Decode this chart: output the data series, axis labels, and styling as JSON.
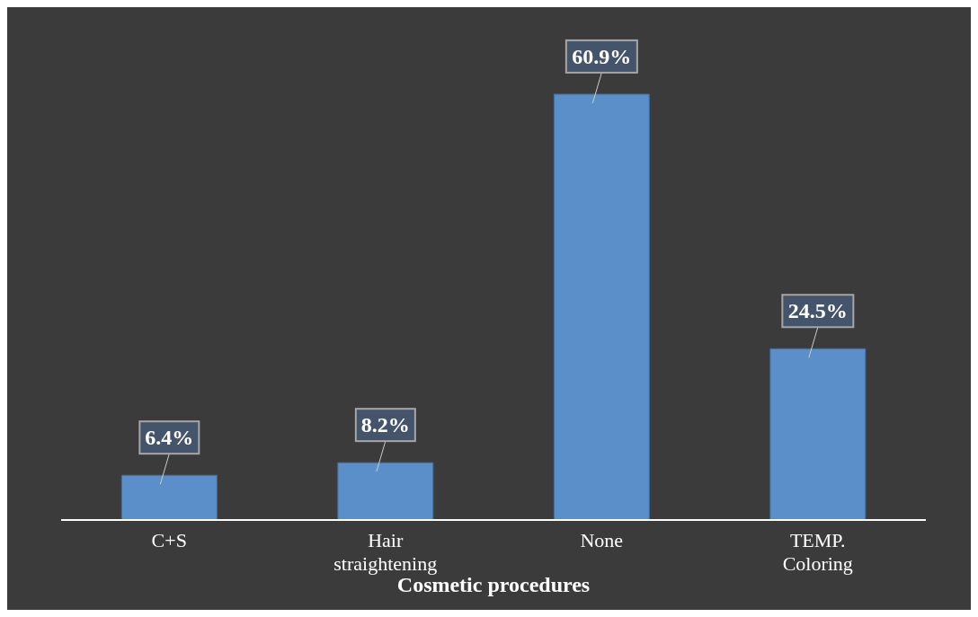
{
  "chart_data": {
    "type": "bar",
    "xlabel": "Cosmetic procedures",
    "categories": [
      "C+S",
      "Hair straightening",
      "None",
      "TEMP. Coloring"
    ],
    "values": [
      6.4,
      8.2,
      60.9,
      24.5
    ],
    "value_labels": [
      "6.4%",
      "8.2%",
      "60.9%",
      "24.5%"
    ],
    "color": "#5b8fc9"
  }
}
